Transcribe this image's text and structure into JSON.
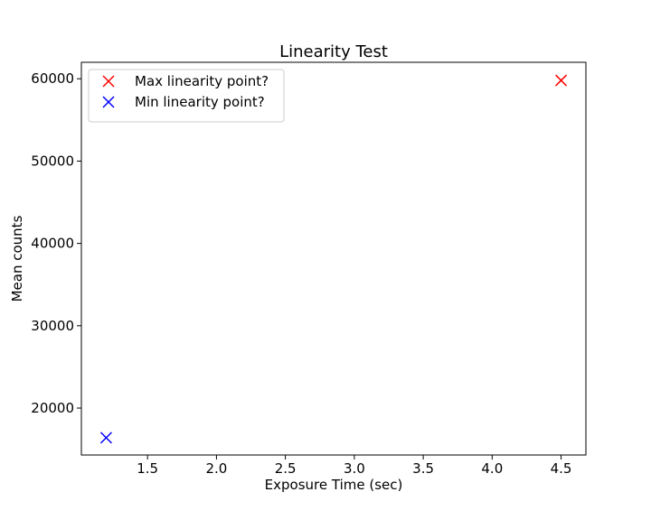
{
  "chart_data": {
    "type": "scatter",
    "title": "Linearity Test",
    "xlabel": "Exposure Time (sec)",
    "ylabel": "Mean counts",
    "xlim": [
      1.02,
      4.68
    ],
    "ylim": [
      14300,
      62000
    ],
    "xticks": [
      1.5,
      2.0,
      2.5,
      3.0,
      3.5,
      4.0,
      4.5
    ],
    "xtick_labels": [
      "1.5",
      "2.0",
      "2.5",
      "3.0",
      "3.5",
      "4.0",
      "4.5"
    ],
    "yticks": [
      20000,
      30000,
      40000,
      50000,
      60000
    ],
    "ytick_labels": [
      "20000",
      "30000",
      "40000",
      "50000",
      "60000"
    ],
    "grid": false,
    "legend_position": "upper-left",
    "series": [
      {
        "name": "Max linearity point?",
        "marker": "x",
        "color": "#ff0000",
        "points": [
          {
            "x": 4.5,
            "y": 59800
          }
        ]
      },
      {
        "name": "Min linearity point?",
        "marker": "x",
        "color": "#0000ff",
        "points": [
          {
            "x": 1.2,
            "y": 16400
          }
        ]
      }
    ]
  }
}
